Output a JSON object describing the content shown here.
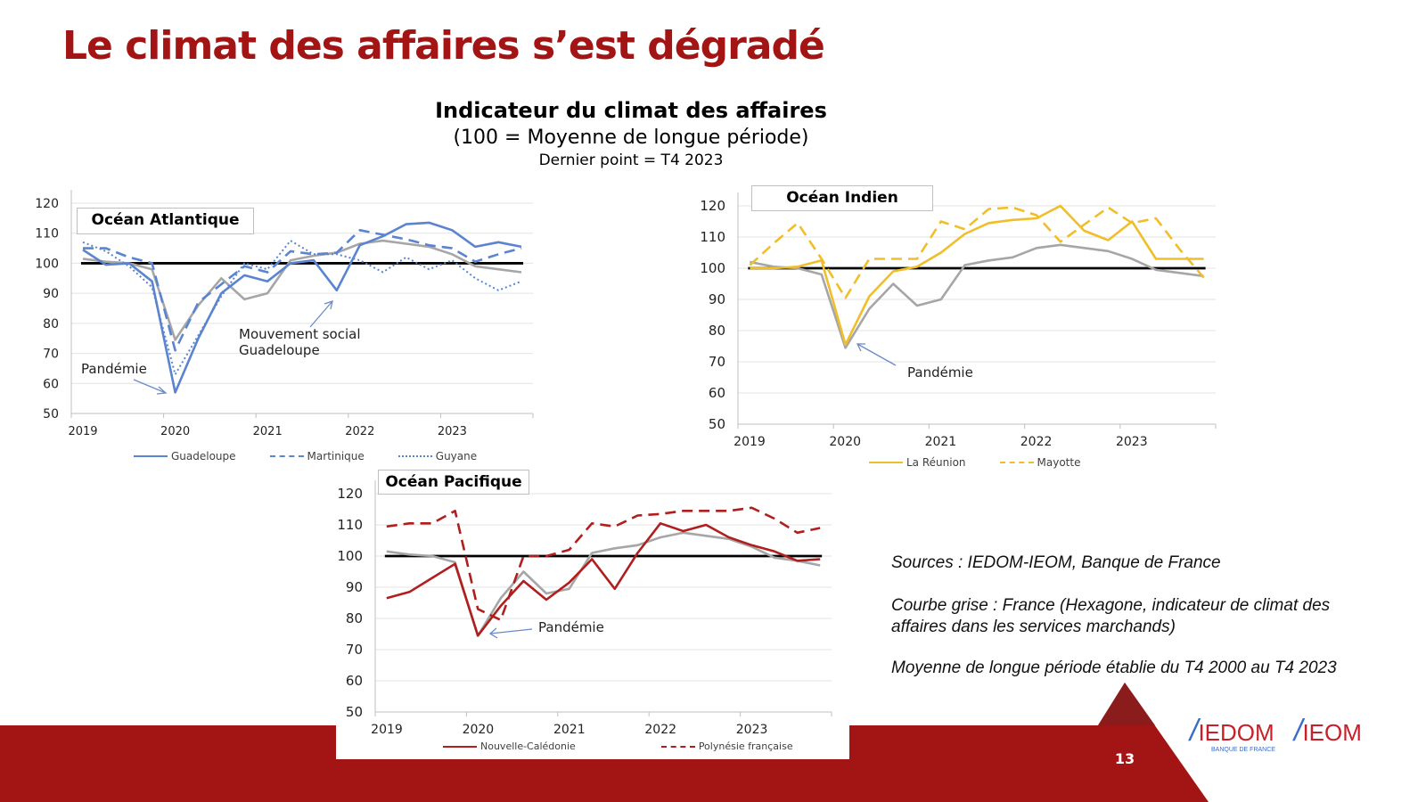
{
  "slide": {
    "title": "Le climat des affaires s’est dégradé",
    "page_number": "13",
    "colors": {
      "title": "#A31515",
      "footer": "#A31515",
      "footer_dark": "#8B1C1C"
    }
  },
  "header": {
    "title": "Indicateur du climat des affaires",
    "subtitle": "(100 = Moyenne de longue période)",
    "last_point": "Dernier point = T4 2023"
  },
  "notes": {
    "sources": "Sources : IEDOM-IEOM, Banque de France",
    "grey_curve_1": "Courbe grise : France (Hexagone, indicateur de climat des",
    "grey_curve_2": "affaires dans les services marchands)",
    "average": "Moyenne de longue période établie du T4 2000 au T4 2023"
  },
  "logos": {
    "iedom": "IEDOM",
    "iedom_sub": "BANQUE DE FRANCE",
    "ieom": "IEOM"
  },
  "chart_data": [
    {
      "type": "line",
      "region": "Océan Atlantique",
      "x_tick_labels": [
        "2019",
        "2020",
        "2021",
        "2022",
        "2023"
      ],
      "x": [
        "T1 2019",
        "T2 2019",
        "T3 2019",
        "T4 2019",
        "T1 2020",
        "T2 2020",
        "T3 2020",
        "T4 2020",
        "T1 2021",
        "T2 2021",
        "T3 2021",
        "T4 2021",
        "T1 2022",
        "T2 2022",
        "T3 2022",
        "T4 2022",
        "T1 2023",
        "T2 2023",
        "T3 2023",
        "T4 2023"
      ],
      "ylim": [
        50,
        120
      ],
      "y_ticks": [
        50,
        60,
        70,
        80,
        90,
        100,
        110,
        120
      ],
      "reference_line": 100,
      "grid": true,
      "legend": "bottom",
      "series": [
        {
          "name": "",
          "color": "#A6A6A6",
          "dash": "solid",
          "values": [
            101.5,
            100.5,
            100,
            98,
            74.5,
            86,
            95,
            88,
            90,
            101,
            102.5,
            103.5,
            106.5,
            107.5,
            106.5,
            105.5,
            103,
            99,
            98,
            97
          ]
        },
        {
          "name": "Guadeloupe",
          "color": "#5B84D0",
          "dash": "solid",
          "values": [
            104.5,
            99.5,
            100,
            94,
            57,
            75,
            90,
            96,
            94,
            100,
            101,
            91,
            106,
            109,
            113,
            113.5,
            111,
            105.5,
            107,
            105.5
          ]
        },
        {
          "name": "Martinique",
          "color": "#5B84D0",
          "dash": "dashed",
          "values": [
            105,
            105,
            102,
            100,
            71,
            87,
            93,
            99,
            97,
            104,
            103,
            103.5,
            111,
            109.5,
            108,
            106,
            105,
            100.5,
            103,
            105
          ]
        },
        {
          "name": "Guyane",
          "color": "#5B84D0",
          "dash": "dotted",
          "values": [
            107,
            104,
            99,
            92,
            63,
            76,
            89,
            100,
            98,
            107.5,
            103,
            103,
            101,
            97,
            102,
            98,
            101,
            95,
            91,
            94
          ]
        }
      ],
      "annotations": [
        {
          "text": "Pandémie"
        },
        {
          "text": "Mouvement social",
          "text2": "Guadeloupe"
        }
      ]
    },
    {
      "type": "line",
      "region": "Océan Indien",
      "x_tick_labels": [
        "2019",
        "2020",
        "2021",
        "2022",
        "2023"
      ],
      "x": [
        "T1 2019",
        "T2 2019",
        "T3 2019",
        "T4 2019",
        "T1 2020",
        "T2 2020",
        "T3 2020",
        "T4 2020",
        "T1 2021",
        "T2 2021",
        "T3 2021",
        "T4 2021",
        "T1 2022",
        "T2 2022",
        "T3 2022",
        "T4 2022",
        "T1 2023",
        "T2 2023",
        "T3 2023",
        "T4 2023"
      ],
      "ylim": [
        50,
        120
      ],
      "y_ticks": [
        50,
        60,
        70,
        80,
        90,
        100,
        110,
        120
      ],
      "reference_line": 100,
      "grid": true,
      "legend": "bottom",
      "series": [
        {
          "name": "",
          "color": "#A6A6A6",
          "dash": "solid",
          "values": [
            102,
            100.5,
            100,
            98,
            74.5,
            87,
            95,
            88,
            90,
            101,
            102.5,
            103.5,
            106.5,
            107.5,
            106.5,
            105.5,
            103,
            99.5,
            98.5,
            97.5
          ]
        },
        {
          "name": "La Réunion",
          "color": "#F0BE28",
          "dash": "solid",
          "values": [
            100,
            100,
            100.5,
            102.5,
            75.5,
            91,
            99,
            100.5,
            105,
            111,
            114.5,
            115.5,
            116,
            120,
            112,
            109,
            115,
            103,
            103,
            103
          ]
        },
        {
          "name": "Mayotte",
          "color": "#F0BE28",
          "dash": "dashed",
          "values": [
            101,
            108,
            114.5,
            103,
            90.5,
            103,
            103,
            103,
            115,
            112.5,
            119,
            119.5,
            117,
            108.5,
            114,
            119.5,
            114.5,
            116,
            106,
            97
          ]
        }
      ],
      "annotations": [
        {
          "text": "Pandémie"
        }
      ]
    },
    {
      "type": "line",
      "region": "Océan Pacifique",
      "x_tick_labels": [
        "2019",
        "2020",
        "2021",
        "2022",
        "2023"
      ],
      "x": [
        "T1 2019",
        "T2 2019",
        "T3 2019",
        "T4 2019",
        "T1 2020",
        "T2 2020",
        "T3 2020",
        "T4 2020",
        "T1 2021",
        "T2 2021",
        "T3 2021",
        "T4 2021",
        "T1 2022",
        "T2 2022",
        "T3 2022",
        "T4 2022",
        "T1 2023",
        "T2 2023",
        "T3 2023",
        "T4 2023"
      ],
      "ylim": [
        50,
        120
      ],
      "y_ticks": [
        50,
        60,
        70,
        80,
        90,
        100,
        110,
        120
      ],
      "reference_line": 100,
      "grid": true,
      "legend": "bottom",
      "series": [
        {
          "name": "",
          "color": "#A6A6A6",
          "dash": "solid",
          "values": [
            101.5,
            100.5,
            100,
            98,
            74.5,
            86.5,
            95,
            88,
            89.5,
            101,
            102.5,
            103.5,
            106,
            107.5,
            106.5,
            105.5,
            103,
            99.5,
            98.5,
            97
          ]
        },
        {
          "name": "Nouvelle-Calédonie",
          "color": "#B01E1E",
          "dash": "solid",
          "values": [
            86.5,
            88.5,
            93,
            97.5,
            74.5,
            84,
            92,
            86,
            91.5,
            99,
            89.5,
            101,
            110.5,
            108,
            110,
            106,
            103.5,
            101.5,
            98.5,
            99
          ]
        },
        {
          "name": "Polynésie française",
          "color": "#B01E1E",
          "dash": "dashed",
          "values": [
            109.5,
            110.5,
            110.5,
            114.5,
            83,
            79.5,
            100,
            100,
            102,
            110.5,
            109.5,
            113,
            113.5,
            114.5,
            114.5,
            114.5,
            115.5,
            112,
            107.5,
            109
          ]
        }
      ],
      "annotations": [
        {
          "text": "Pandémie"
        }
      ]
    }
  ]
}
